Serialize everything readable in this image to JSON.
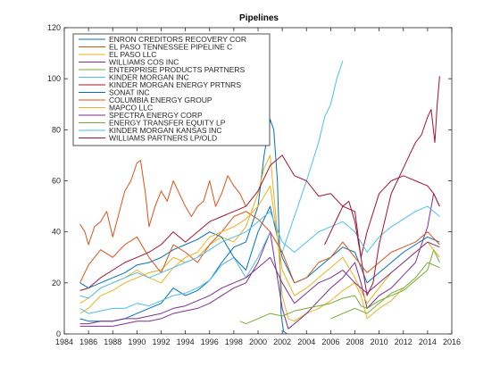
{
  "chart_data": {
    "type": "line",
    "title": "Pipelines",
    "xlabel": "",
    "ylabel": "",
    "xlim": [
      1984,
      2016
    ],
    "ylim": [
      0,
      120
    ],
    "xticks": [
      1984,
      1986,
      1988,
      1990,
      1992,
      1994,
      1996,
      1998,
      2000,
      2002,
      2004,
      2006,
      2008,
      2010,
      2012,
      2014,
      2016
    ],
    "yticks": [
      0,
      20,
      40,
      60,
      80,
      100,
      120
    ],
    "grid": false,
    "legend_position": "top-left",
    "series": [
      {
        "name": "ENRON CREDITORS RECOVERY COR",
        "color": "#0072bd",
        "x": [
          1985.3,
          1986,
          1987,
          1988,
          1989,
          1990,
          1991,
          1992,
          1993,
          1994,
          1995,
          1996,
          1997,
          1998,
          1999,
          2000,
          2000.5,
          2001,
          2001.3,
          2001.6,
          2001.8,
          2001.9,
          2002.1,
          2002.4
        ],
        "y": [
          6,
          5,
          5,
          5,
          6,
          8,
          10,
          12,
          18,
          15,
          17,
          21,
          28,
          34,
          36,
          50,
          70,
          84,
          80,
          60,
          30,
          8,
          1,
          0
        ]
      },
      {
        "name": "EL PASO TENNESSEE PIPELINE C",
        "color": "#d95319",
        "x": [
          1985.3,
          1985.7,
          1986,
          1986.5,
          1987,
          1987.5,
          1988,
          1988.5,
          1989,
          1989.5,
          1990,
          1990.3,
          1990.7,
          1991,
          1991.5,
          1992,
          1992.5,
          1993,
          1993.5,
          1994,
          1994.5,
          1995,
          1995.5,
          1996,
          1996.5,
          1997,
          1997.5,
          1998,
          1998.5,
          1999
        ],
        "y": [
          43,
          40,
          35,
          42,
          44,
          48,
          38,
          47,
          56,
          60,
          67,
          68,
          55,
          42,
          50,
          56,
          52,
          60,
          55,
          50,
          46,
          50,
          52,
          60,
          50,
          55,
          62,
          58,
          55,
          50
        ]
      },
      {
        "name": "EL PASO LLC",
        "color": "#edb120",
        "x": [
          1985.3,
          1986,
          1987,
          1988,
          1989,
          1990,
          1991,
          1992,
          1993,
          1994,
          1995,
          1996,
          1997,
          1998,
          1999,
          2000,
          2000.5,
          2001,
          2001.5,
          2002,
          2002.5,
          2003,
          2004,
          2005,
          2006,
          2007,
          2008,
          2008.5,
          2009,
          2010,
          2011,
          2012
        ],
        "y": [
          8,
          10,
          15,
          17,
          20,
          22,
          24,
          25,
          30,
          28,
          30,
          35,
          38,
          36,
          42,
          55,
          65,
          70,
          45,
          15,
          6,
          5,
          8,
          10,
          13,
          17,
          20,
          15,
          6,
          10,
          13,
          18
        ]
      },
      {
        "name": "WILLIAMS COS INC",
        "color": "#7e2f8e",
        "x": [
          1985.3,
          1986,
          1987,
          1988,
          1989,
          1990,
          1991,
          1992,
          1993,
          1994,
          1995,
          1996,
          1997,
          1998,
          1999,
          2000,
          2001,
          2002,
          2002.5,
          2003,
          2004,
          2005,
          2006,
          2007,
          2008,
          2008.5,
          2009,
          2010,
          2011,
          2012,
          2013,
          2014,
          2014.5,
          2015
        ],
        "y": [
          3,
          3,
          3,
          3,
          4,
          5,
          5,
          6,
          8,
          9,
          10,
          12,
          15,
          18,
          20,
          28,
          40,
          10,
          2,
          4,
          8,
          13,
          18,
          22,
          28,
          20,
          10,
          15,
          18,
          23,
          28,
          42,
          55,
          50
        ]
      },
      {
        "name": "ENTERPRISE PRODUCTS PARTNERS",
        "color": "#77ac30",
        "x": [
          1998.5,
          1999,
          2000,
          2001,
          2002,
          2003,
          2004,
          2005,
          2006,
          2007,
          2008,
          2008.5,
          2009,
          2010,
          2011,
          2012,
          2013,
          2014,
          2014.5,
          2015
        ],
        "y": [
          5,
          4,
          6,
          8,
          7,
          9,
          10,
          11,
          12,
          14,
          15,
          11,
          10,
          13,
          15,
          17,
          21,
          25,
          33,
          28
        ]
      },
      {
        "name": "KINDER MORGAN INC",
        "color": "#4dbeee",
        "x": [
          1985.3,
          1986,
          1987,
          1988,
          1989,
          1990,
          1991,
          1992,
          1993,
          1994,
          1995,
          1996,
          1997,
          1998,
          1999,
          2000,
          2001,
          2002,
          2003,
          2004,
          2005,
          2005.5,
          2006,
          2006.5,
          2007
        ],
        "y": [
          10,
          8,
          9,
          10,
          10,
          12,
          11,
          13,
          15,
          16,
          18,
          21,
          27,
          30,
          22,
          30,
          40,
          32,
          46,
          60,
          75,
          85,
          90,
          100,
          107
        ]
      },
      {
        "name": "KINDER MORGAN ENERGY PRTNRS",
        "color": "#a2142f",
        "x": [
          1985.3,
          1986,
          1987,
          1988,
          1989,
          1990,
          1991,
          1992,
          1993,
          1994,
          1995,
          1996,
          1997,
          1998,
          1999,
          2000,
          2001,
          2002,
          2003,
          2004,
          2005,
          2006,
          2007,
          2008,
          2008.5,
          2009,
          2010,
          2011,
          2012,
          2013,
          2014,
          2014.5,
          2015
        ],
        "y": [
          17,
          18,
          22,
          25,
          28,
          30,
          32,
          35,
          40,
          36,
          40,
          44,
          46,
          48,
          50,
          56,
          66,
          70,
          62,
          60,
          54,
          55,
          50,
          48,
          30,
          40,
          55,
          60,
          62,
          60,
          58,
          55,
          50
        ]
      },
      {
        "name": "SONAT INC",
        "color": "#0072bd",
        "x": [
          1985.3,
          1986,
          1987,
          1988,
          1989,
          1990,
          1991,
          1992,
          1993,
          1994,
          1995,
          1996,
          1997,
          1998,
          1999,
          2000,
          2001,
          2002,
          2003,
          2004,
          2005,
          2006,
          2007,
          2008,
          2009,
          2010,
          2011,
          2012,
          2013,
          2014,
          2015
        ],
        "y": [
          20,
          18,
          20,
          22,
          24,
          27,
          28,
          30,
          33,
          35,
          37,
          40,
          38,
          30,
          25,
          40,
          50,
          30,
          20,
          22,
          26,
          30,
          34,
          32,
          20,
          24,
          28,
          32,
          35,
          38,
          36
        ]
      },
      {
        "name": "COLUMBIA ENERGY GROUP",
        "color": "#d95319",
        "x": [
          1985.3,
          1986,
          1987,
          1988,
          1989,
          1990,
          1991,
          1992,
          1993,
          1994,
          1995,
          1996,
          1997,
          1998,
          1999,
          2000,
          2001,
          2002,
          2003,
          2004,
          2005,
          2006,
          2007,
          2008,
          2009,
          2010,
          2011,
          2012,
          2013,
          2014,
          2015
        ],
        "y": [
          20,
          27,
          33,
          30,
          35,
          38,
          30,
          24,
          35,
          32,
          28,
          35,
          40,
          46,
          48,
          45,
          40,
          32,
          20,
          22,
          28,
          30,
          36,
          30,
          24,
          28,
          32,
          34,
          36,
          40,
          35
        ]
      },
      {
        "name": "MAPCO LLC",
        "color": "#edb120",
        "x": [
          1985.3,
          1986,
          1987,
          1988,
          1989,
          1990,
          1991,
          1992,
          1993,
          1994,
          1995,
          1996,
          1997,
          1998,
          1999,
          2000,
          2001,
          2002,
          2003,
          2004,
          2005,
          2006,
          2007,
          2008,
          2009,
          2010,
          2011,
          2012,
          2013,
          2014,
          2015
        ],
        "y": [
          12,
          14,
          18,
          20,
          22,
          25,
          22,
          20,
          26,
          30,
          32,
          38,
          40,
          42,
          45,
          50,
          58,
          25,
          15,
          18,
          22,
          26,
          30,
          22,
          12,
          18,
          24,
          28,
          32,
          36,
          30
        ]
      },
      {
        "name": "SPECTRA ENERGY CORP",
        "color": "#7e2f8e",
        "x": [
          1985.3,
          1986,
          1987,
          1988,
          1989,
          1990,
          1991,
          1992,
          1993,
          1994,
          1995,
          1996,
          1997,
          1998,
          1999,
          2000,
          2001,
          2002,
          2003,
          2004,
          2005,
          2006,
          2007,
          2008,
          2009,
          2010,
          2011,
          2012,
          2013,
          2014,
          2015
        ],
        "y": [
          4,
          4,
          5,
          5,
          6,
          6,
          7,
          8,
          10,
          11,
          13,
          15,
          18,
          20,
          22,
          26,
          30,
          20,
          12,
          16,
          20,
          22,
          25,
          20,
          16,
          20,
          24,
          28,
          32,
          36,
          34
        ]
      },
      {
        "name": "ENERGY TRANSFER EQUITY LP",
        "color": "#77ac30",
        "x": [
          2006,
          2007,
          2008,
          2009,
          2010,
          2011,
          2012,
          2013,
          2014,
          2015
        ],
        "y": [
          6,
          8,
          10,
          8,
          12,
          16,
          18,
          22,
          28,
          26
        ]
      },
      {
        "name": "KINDER MORGAN KANSAS INC",
        "color": "#4dbeee",
        "x": [
          1985.3,
          1986,
          1987,
          1988,
          1989,
          1990,
          1991,
          1992,
          1993,
          1994,
          1995,
          1996,
          1997,
          1998,
          1999,
          2000,
          2001,
          2002,
          2003,
          2004,
          2005,
          2006,
          2007,
          2008,
          2009,
          2010,
          2011,
          2012,
          2013,
          2014,
          2015
        ],
        "y": [
          15,
          14,
          18,
          20,
          22,
          24,
          22,
          24,
          26,
          28,
          30,
          33,
          36,
          38,
          40,
          44,
          48,
          36,
          32,
          36,
          40,
          42,
          44,
          40,
          32,
          38,
          42,
          45,
          48,
          50,
          46
        ]
      },
      {
        "name": "WILLIAMS PARTNERS LP/OLD",
        "color": "#a2142f",
        "x": [
          2005.5,
          2006,
          2006.5,
          2007,
          2007.5,
          2008,
          2008.5,
          2009,
          2009.5,
          2010,
          2010.5,
          2011,
          2011.5,
          2012,
          2012.5,
          2013,
          2013.5,
          2014,
          2014.3,
          2014.6,
          2014.8,
          2015
        ],
        "y": [
          35,
          40,
          45,
          50,
          52,
          44,
          30,
          15,
          20,
          35,
          45,
          55,
          60,
          65,
          70,
          75,
          78,
          85,
          88,
          75,
          90,
          101
        ]
      }
    ]
  }
}
